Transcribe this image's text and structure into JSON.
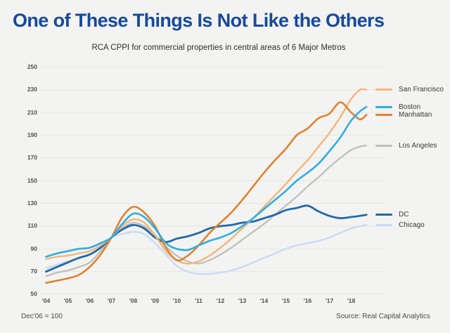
{
  "title": "One of These Things Is Not Like the Others",
  "subtitle": "RCA CPPI for commercial properties in central areas of 6 Major Metros",
  "footnote_left": "Dec'06 = 100",
  "source": "Source: Real Capital Analytics",
  "colors": {
    "title": "#17499d",
    "background": "#f3f3f1",
    "gridline": "#e6e6e3",
    "axis_text": "#4f4f4f"
  },
  "chart_data": {
    "type": "line",
    "title": "One of These Things Is Not Like the Others",
    "subtitle": "RCA CPPI for commercial properties in central areas of 6 Major Metros",
    "note": "Dec'06 = 100",
    "source": "Source: Real Capital Analytics",
    "grid": true,
    "legend_position": "right",
    "ylim": [
      50,
      250
    ],
    "y_ticks": [
      50,
      70,
      90,
      110,
      130,
      150,
      170,
      190,
      210,
      230,
      250
    ],
    "x_tick_labels": [
      "'04",
      "'05",
      "'06",
      "'07",
      "'08",
      "'09",
      "'10",
      "'11",
      "'12",
      "'13",
      "'14",
      "'15",
      "'16",
      "'17",
      "'18"
    ],
    "x_tick_years": [
      2004,
      2005,
      2006,
      2007,
      2008,
      2009,
      2010,
      2011,
      2012,
      2013,
      2014,
      2015,
      2016,
      2017,
      2018
    ],
    "x": [
      2004,
      2004.5,
      2005,
      2005.5,
      2006,
      2006.5,
      2007,
      2007.5,
      2008,
      2008.5,
      2009,
      2009.5,
      2010,
      2010.5,
      2011,
      2011.5,
      2012,
      2012.5,
      2013,
      2013.5,
      2014,
      2014.5,
      2015,
      2015.5,
      2016,
      2016.5,
      2017,
      2017.5,
      2018,
      2018.4,
      2018.7
    ],
    "series": [
      {
        "name": "San Francisco",
        "color": "#f4b579",
        "width": 2.4,
        "values": [
          81,
          83,
          84,
          86,
          88,
          93,
          100,
          110,
          116,
          113,
          102,
          88,
          80,
          77,
          79,
          84,
          91,
          99,
          108,
          117,
          127,
          137,
          147,
          158,
          168,
          180,
          192,
          206,
          222,
          230,
          230
        ]
      },
      {
        "name": "Boston",
        "color": "#2eaee4",
        "width": 2.6,
        "values": [
          83,
          86,
          88,
          90,
          91,
          95,
          100,
          112,
          121,
          118,
          108,
          95,
          90,
          89,
          93,
          97,
          100,
          104,
          110,
          117,
          125,
          133,
          141,
          150,
          157,
          165,
          176,
          188,
          203,
          211,
          215
        ]
      },
      {
        "name": "Manhattan",
        "color": "#e0822e",
        "width": 2.6,
        "values": [
          60,
          62,
          64,
          67,
          74,
          85,
          100,
          118,
          127,
          122,
          110,
          91,
          80,
          84,
          93,
          104,
          113,
          122,
          133,
          145,
          157,
          168,
          178,
          190,
          196,
          205,
          209,
          219,
          210,
          204,
          208
        ]
      },
      {
        "name": "Los Angeles",
        "color": "#bdbdbd",
        "width": 2.2,
        "values": [
          66,
          69,
          71,
          74,
          78,
          88,
          100,
          108,
          113,
          110,
          102,
          92,
          84,
          79,
          77,
          80,
          85,
          91,
          98,
          105,
          112,
          120,
          128,
          136,
          145,
          153,
          162,
          170,
          177,
          180,
          181
        ]
      },
      {
        "name": "DC",
        "color": "#1f69a8",
        "width": 2.8,
        "values": [
          70,
          74,
          78,
          82,
          85,
          91,
          100,
          107,
          111,
          108,
          100,
          96,
          99,
          101,
          104,
          108,
          110,
          111,
          113,
          114,
          117,
          120,
          124,
          126,
          128,
          123,
          119,
          117,
          118,
          119,
          120
        ]
      },
      {
        "name": "Chicago",
        "color": "#c9daf5",
        "width": 2.4,
        "values": [
          73,
          76,
          79,
          82,
          85,
          92,
          100,
          103,
          105,
          103,
          95,
          85,
          75,
          70,
          68,
          68,
          69,
          71,
          74,
          78,
          82,
          86,
          90,
          93,
          95,
          97,
          100,
          104,
          108,
          110,
          111
        ]
      }
    ],
    "draw_order": [
      "Chicago",
      "Los Angeles",
      "DC",
      "San Francisco",
      "Manhattan",
      "Boston"
    ]
  }
}
